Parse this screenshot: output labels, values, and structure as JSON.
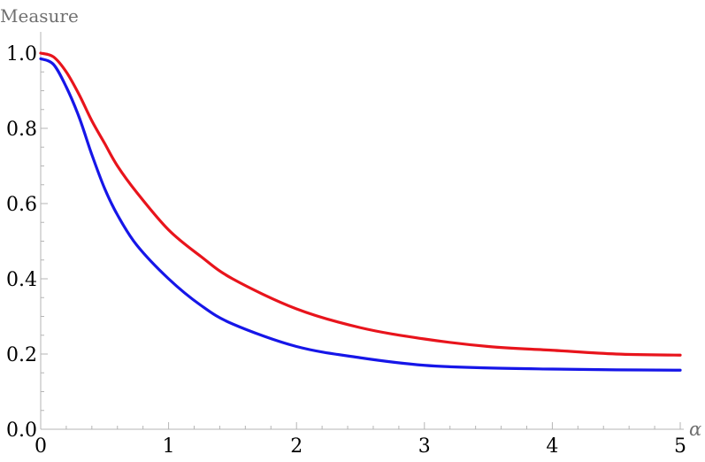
{
  "chart_data": {
    "type": "line",
    "title": "",
    "xlabel": "α",
    "ylabel": "Measure",
    "xlim": [
      0,
      5
    ],
    "ylim": [
      0,
      1.05
    ],
    "grid": false,
    "legend": "none",
    "x_ticks": [
      {
        "value": 0,
        "label": "0"
      },
      {
        "value": 1,
        "label": "1"
      },
      {
        "value": 2,
        "label": "2"
      },
      {
        "value": 3,
        "label": "3"
      },
      {
        "value": 4,
        "label": "4"
      },
      {
        "value": 5,
        "label": "5"
      }
    ],
    "y_ticks": [
      {
        "value": 0.0,
        "label": "0.0"
      },
      {
        "value": 0.2,
        "label": "0.2"
      },
      {
        "value": 0.4,
        "label": "0.4"
      },
      {
        "value": 0.6,
        "label": "0.6"
      },
      {
        "value": 0.8,
        "label": "0.8"
      },
      {
        "value": 1.0,
        "label": "1.0"
      }
    ],
    "x_minor_step": 0.2,
    "y_minor_step": 0.05,
    "x": [
      0,
      0.1,
      0.2,
      0.3,
      0.4,
      0.5,
      0.6,
      0.75,
      1.0,
      1.25,
      1.5,
      2.0,
      2.5,
      3.0,
      3.5,
      4.0,
      4.5,
      5.0
    ],
    "series": [
      {
        "color": "#e8141c",
        "values": [
          1.0,
          0.99,
          0.95,
          0.89,
          0.82,
          0.76,
          0.7,
          0.63,
          0.53,
          0.46,
          0.4,
          0.32,
          0.27,
          0.24,
          0.22,
          0.21,
          0.2,
          0.197
        ]
      },
      {
        "color": "#1616e8",
        "values": [
          0.985,
          0.97,
          0.91,
          0.83,
          0.73,
          0.64,
          0.57,
          0.49,
          0.4,
          0.33,
          0.28,
          0.22,
          0.19,
          0.17,
          0.163,
          0.16,
          0.158,
          0.157
        ]
      }
    ]
  }
}
